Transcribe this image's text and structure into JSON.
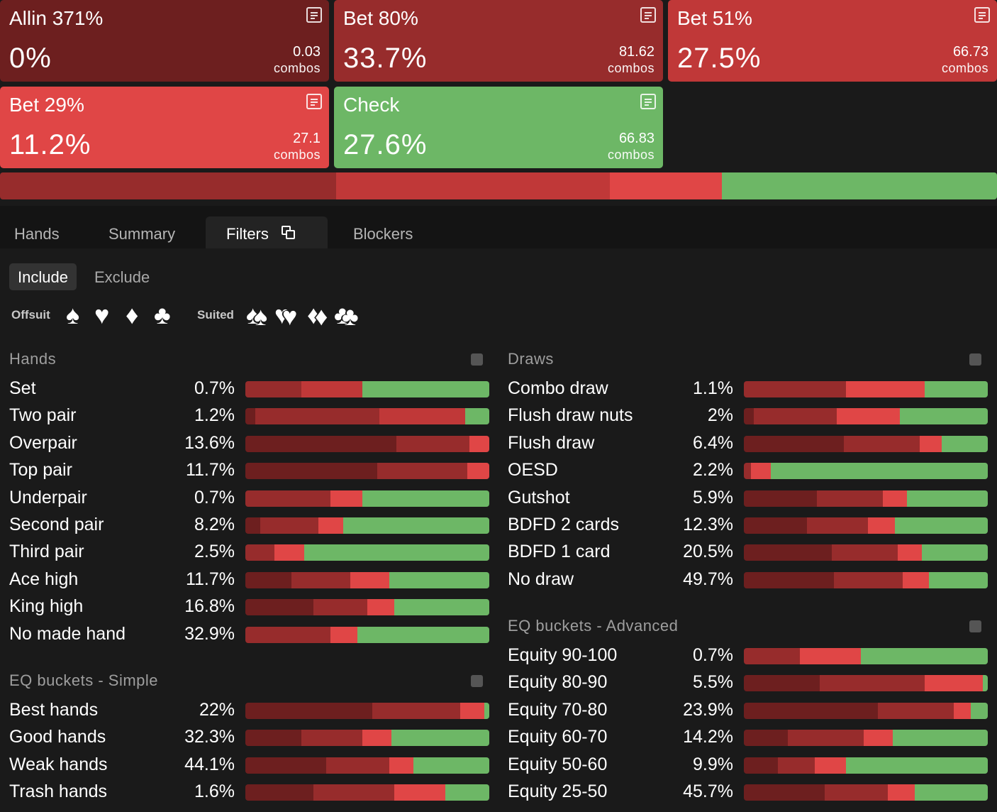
{
  "colors": {
    "allin": "#6d1f1f",
    "bet80": "#972c2c",
    "bet51": "#c03838",
    "bet29": "#e04646",
    "check": "#6db766"
  },
  "actions": [
    {
      "name": "Allin 371%",
      "pct": "0%",
      "combos": "0.03",
      "combos_label": "combos"
    },
    {
      "name": "Bet 80%",
      "pct": "33.7%",
      "combos": "81.62",
      "combos_label": "combos"
    },
    {
      "name": "Bet 51%",
      "pct": "27.5%",
      "combos": "66.73",
      "combos_label": "combos"
    },
    {
      "name": "Bet 29%",
      "pct": "11.2%",
      "combos": "27.1",
      "combos_label": "combos"
    },
    {
      "name": "Check",
      "pct": "27.6%",
      "combos": "66.83",
      "combos_label": "combos"
    }
  ],
  "strategy_bar": [
    0,
    33.7,
    27.5,
    11.2,
    27.6
  ],
  "tabs": [
    {
      "label": "Hands"
    },
    {
      "label": "Summary"
    },
    {
      "label": "Filters"
    },
    {
      "label": "Blockers"
    }
  ],
  "filter_mode": {
    "include": "Include",
    "exclude": "Exclude"
  },
  "suits": {
    "offsuit_label": "Offsuit",
    "suited_label": "Suited",
    "glyphs": [
      "♠",
      "♥",
      "♦",
      "♣"
    ]
  },
  "sections": {
    "hands": {
      "title": "Hands",
      "rows": [
        {
          "label": "Set",
          "pct": "0.7%",
          "mix": [
            0,
            23,
            25,
            0,
            52
          ]
        },
        {
          "label": "Two pair",
          "pct": "1.2%",
          "mix": [
            4,
            51,
            35,
            0,
            10
          ]
        },
        {
          "label": "Overpair",
          "pct": "13.6%",
          "mix": [
            62,
            30,
            0,
            8,
            0
          ]
        },
        {
          "label": "Top pair",
          "pct": "11.7%",
          "mix": [
            54,
            37,
            0,
            9,
            0
          ]
        },
        {
          "label": "Underpair",
          "pct": "0.7%",
          "mix": [
            0,
            35,
            0,
            13,
            52
          ]
        },
        {
          "label": "Second pair",
          "pct": "8.2%",
          "mix": [
            6,
            24,
            0,
            10,
            60
          ]
        },
        {
          "label": "Third pair",
          "pct": "2.5%",
          "mix": [
            0,
            12,
            0,
            12,
            76
          ]
        },
        {
          "label": "Ace high",
          "pct": "11.7%",
          "mix": [
            19,
            24,
            0,
            16,
            41
          ]
        },
        {
          "label": "King high",
          "pct": "16.8%",
          "mix": [
            28,
            22,
            0,
            11,
            39
          ]
        },
        {
          "label": "No made hand",
          "pct": "32.9%",
          "mix": [
            0,
            35,
            0,
            11,
            54
          ]
        }
      ]
    },
    "eq_simple": {
      "title": "EQ buckets - Simple",
      "rows": [
        {
          "label": "Best hands",
          "pct": "22%",
          "mix": [
            52,
            36,
            0,
            10,
            2
          ]
        },
        {
          "label": "Good hands",
          "pct": "32.3%",
          "mix": [
            23,
            25,
            0,
            12,
            40
          ]
        },
        {
          "label": "Weak hands",
          "pct": "44.1%",
          "mix": [
            33,
            26,
            0,
            10,
            31
          ]
        },
        {
          "label": "Trash hands",
          "pct": "1.6%",
          "mix": [
            28,
            33,
            0,
            21,
            18
          ]
        }
      ]
    },
    "draws": {
      "title": "Draws",
      "rows": [
        {
          "label": "Combo draw",
          "pct": "1.1%",
          "mix": [
            0,
            42,
            0,
            32,
            26
          ]
        },
        {
          "label": "Flush draw nuts",
          "pct": "2%",
          "mix": [
            4,
            34,
            0,
            26,
            36
          ]
        },
        {
          "label": "Flush draw",
          "pct": "6.4%",
          "mix": [
            41,
            31,
            0,
            9,
            19
          ]
        },
        {
          "label": "OESD",
          "pct": "2.2%",
          "mix": [
            0,
            3,
            0,
            8,
            89
          ]
        },
        {
          "label": "Gutshot",
          "pct": "5.9%",
          "mix": [
            30,
            27,
            0,
            10,
            33
          ]
        },
        {
          "label": "BDFD 2 cards",
          "pct": "12.3%",
          "mix": [
            26,
            25,
            0,
            11,
            38
          ]
        },
        {
          "label": "BDFD 1 card",
          "pct": "20.5%",
          "mix": [
            36,
            27,
            0,
            10,
            27
          ]
        },
        {
          "label": "No draw",
          "pct": "49.7%",
          "mix": [
            37,
            28,
            0,
            11,
            24
          ]
        }
      ]
    },
    "eq_advanced": {
      "title": "EQ buckets - Advanced",
      "rows": [
        {
          "label": "Equity 90-100",
          "pct": "0.7%",
          "mix": [
            0,
            23,
            0,
            25,
            52
          ]
        },
        {
          "label": "Equity 80-90",
          "pct": "5.5%",
          "mix": [
            31,
            43,
            0,
            24,
            2
          ]
        },
        {
          "label": "Equity 70-80",
          "pct": "23.9%",
          "mix": [
            55,
            31,
            0,
            7,
            7
          ]
        },
        {
          "label": "Equity 60-70",
          "pct": "14.2%",
          "mix": [
            18,
            31,
            0,
            12,
            39
          ]
        },
        {
          "label": "Equity 50-60",
          "pct": "9.9%",
          "mix": [
            14,
            15,
            0,
            13,
            58
          ]
        },
        {
          "label": "Equity 25-50",
          "pct": "45.7%",
          "mix": [
            33,
            26,
            0,
            11,
            30
          ]
        }
      ]
    }
  }
}
